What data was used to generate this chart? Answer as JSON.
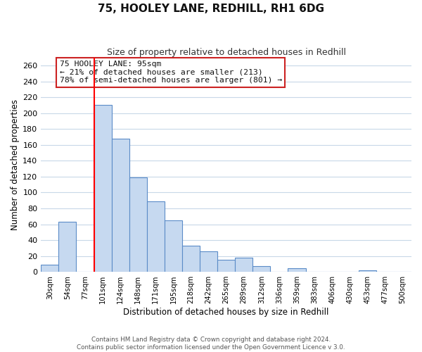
{
  "title": "75, HOOLEY LANE, REDHILL, RH1 6DG",
  "subtitle": "Size of property relative to detached houses in Redhill",
  "xlabel": "Distribution of detached houses by size in Redhill",
  "ylabel": "Number of detached properties",
  "bar_labels": [
    "30sqm",
    "54sqm",
    "77sqm",
    "101sqm",
    "124sqm",
    "148sqm",
    "171sqm",
    "195sqm",
    "218sqm",
    "242sqm",
    "265sqm",
    "289sqm",
    "312sqm",
    "336sqm",
    "359sqm",
    "383sqm",
    "406sqm",
    "430sqm",
    "453sqm",
    "477sqm",
    "500sqm"
  ],
  "bar_values": [
    9,
    63,
    0,
    210,
    168,
    119,
    89,
    65,
    33,
    26,
    15,
    18,
    7,
    0,
    5,
    0,
    0,
    0,
    2,
    0,
    0
  ],
  "bar_color": "#c6d9f0",
  "bar_edge_color": "#5b8cc8",
  "vline_color": "red",
  "vline_index": 3,
  "ylim": [
    0,
    270
  ],
  "yticks": [
    0,
    20,
    40,
    60,
    80,
    100,
    120,
    140,
    160,
    180,
    200,
    220,
    240,
    260
  ],
  "annotation_title": "75 HOOLEY LANE: 95sqm",
  "annotation_line1": "← 21% of detached houses are smaller (213)",
  "annotation_line2": "78% of semi-detached houses are larger (801) →",
  "footer_line1": "Contains HM Land Registry data © Crown copyright and database right 2024.",
  "footer_line2": "Contains public sector information licensed under the Open Government Licence v 3.0.",
  "background_color": "#ffffff",
  "grid_color": "#c8d8e8"
}
